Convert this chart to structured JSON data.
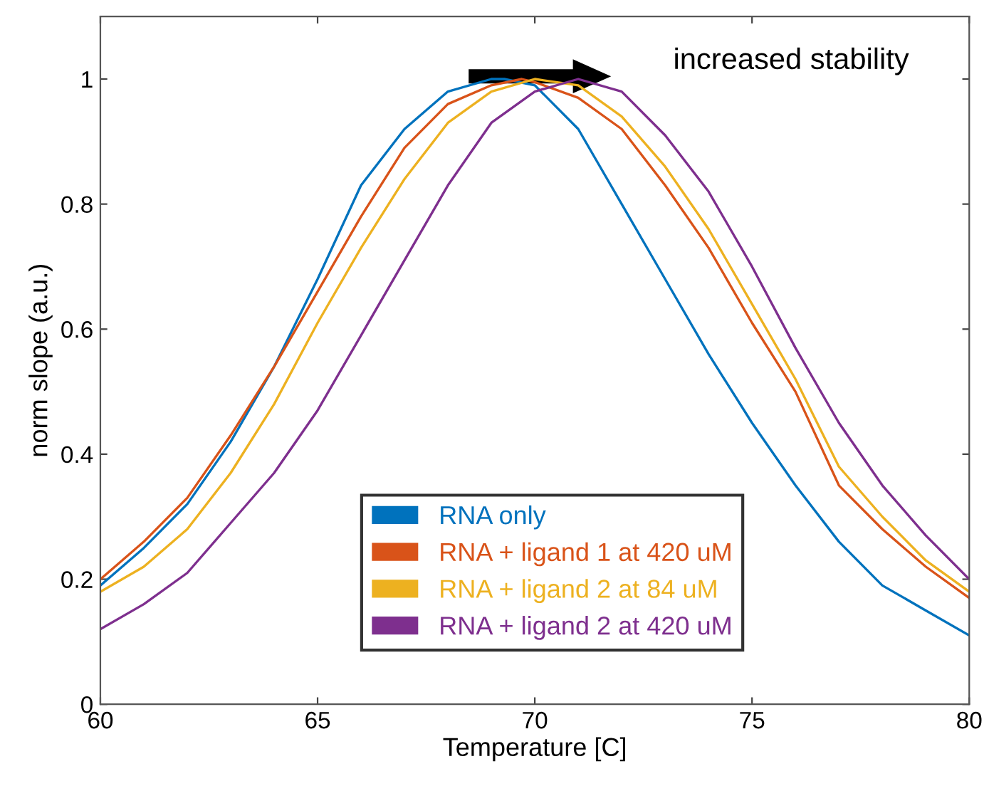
{
  "chart_data": {
    "type": "line",
    "xlabel": "Temperature [C]",
    "ylabel": "norm slope (a.u.)",
    "xlim": [
      60,
      80
    ],
    "ylim": [
      0,
      1.1
    ],
    "xticks": [
      60,
      65,
      70,
      75,
      80
    ],
    "yticks": [
      0,
      0.2,
      0.4,
      0.6,
      0.8,
      1
    ],
    "grid": false,
    "legend": "bottom",
    "marker": "none",
    "line_style": "solid",
    "annotations": [
      "increased stability"
    ],
    "series": [
      {
        "name": "RNA only",
        "color": "#0072bd",
        "x": [
          60,
          61,
          62,
          63,
          64,
          65,
          66,
          67,
          68,
          69,
          69.3,
          70,
          71,
          72,
          73,
          74,
          75,
          76,
          77,
          78,
          79,
          80
        ],
        "values": [
          0.19,
          0.25,
          0.32,
          0.42,
          0.54,
          0.68,
          0.83,
          0.92,
          0.98,
          1.0,
          1.0,
          0.99,
          0.92,
          0.8,
          0.68,
          0.56,
          0.45,
          0.35,
          0.26,
          0.19,
          0.15,
          0.11
        ]
      },
      {
        "name": "RNA + ligand 1 at 420 uM",
        "color": "#d95319",
        "x": [
          60,
          61,
          62,
          63,
          64,
          65,
          66,
          67,
          68,
          69,
          69.7,
          70,
          71,
          72,
          73,
          74,
          75,
          76,
          77,
          78,
          79,
          80
        ],
        "values": [
          0.2,
          0.26,
          0.33,
          0.43,
          0.54,
          0.66,
          0.78,
          0.89,
          0.96,
          0.99,
          1.0,
          0.995,
          0.97,
          0.92,
          0.83,
          0.73,
          0.61,
          0.5,
          0.35,
          0.28,
          0.22,
          0.17
        ]
      },
      {
        "name": "RNA + ligand 2 at 84 uM",
        "color": "#edb120",
        "x": [
          60,
          61,
          62,
          63,
          64,
          65,
          66,
          67,
          68,
          69,
          70,
          71,
          72,
          73,
          74,
          75,
          76,
          77,
          78,
          79,
          80
        ],
        "values": [
          0.18,
          0.22,
          0.28,
          0.37,
          0.48,
          0.61,
          0.73,
          0.84,
          0.93,
          0.98,
          1.0,
          0.99,
          0.94,
          0.86,
          0.76,
          0.64,
          0.52,
          0.38,
          0.3,
          0.23,
          0.18
        ]
      },
      {
        "name": "RNA + ligand 2 at 420 uM",
        "color": "#7e2f8e",
        "x": [
          60,
          61,
          62,
          63,
          64,
          65,
          66,
          67,
          68,
          69,
          70,
          71,
          72,
          73,
          74,
          75,
          76,
          77,
          78,
          79,
          80
        ],
        "values": [
          0.12,
          0.16,
          0.21,
          0.29,
          0.37,
          0.47,
          0.59,
          0.71,
          0.83,
          0.93,
          0.98,
          1.0,
          0.98,
          0.91,
          0.82,
          0.7,
          0.57,
          0.45,
          0.35,
          0.27,
          0.2
        ]
      }
    ]
  }
}
